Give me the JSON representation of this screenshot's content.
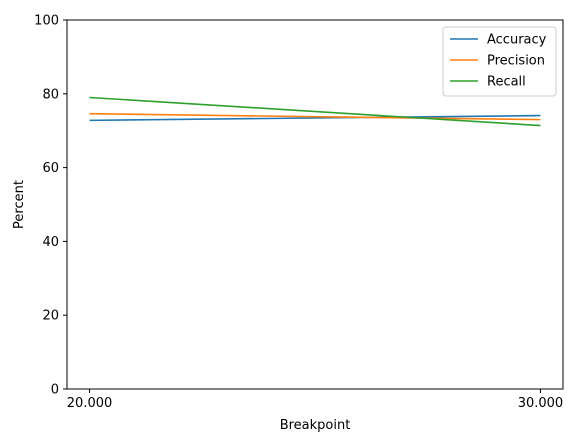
{
  "chart_data": {
    "type": "line",
    "title": "",
    "xlabel": "Breakpoint",
    "ylabel": "Percent",
    "x": [
      20,
      30
    ],
    "x_tick_labels": [
      "20.000",
      "30.000"
    ],
    "xlim": [
      19.5,
      30.5
    ],
    "ylim": [
      0,
      100
    ],
    "y_ticks": [
      0,
      20,
      40,
      60,
      80,
      100
    ],
    "y_tick_labels": [
      "0",
      "20",
      "40",
      "60",
      "80",
      "100"
    ],
    "grid": false,
    "legend_position": "top-right",
    "series": [
      {
        "name": "Accuracy",
        "color": "#1f77b4",
        "values": [
          72.8,
          74.1
        ]
      },
      {
        "name": "Precision",
        "color": "#ff7f0e",
        "values": [
          74.6,
          73.0
        ]
      },
      {
        "name": "Recall",
        "color": "#2ca02c",
        "values": [
          79.0,
          71.4
        ]
      }
    ]
  }
}
